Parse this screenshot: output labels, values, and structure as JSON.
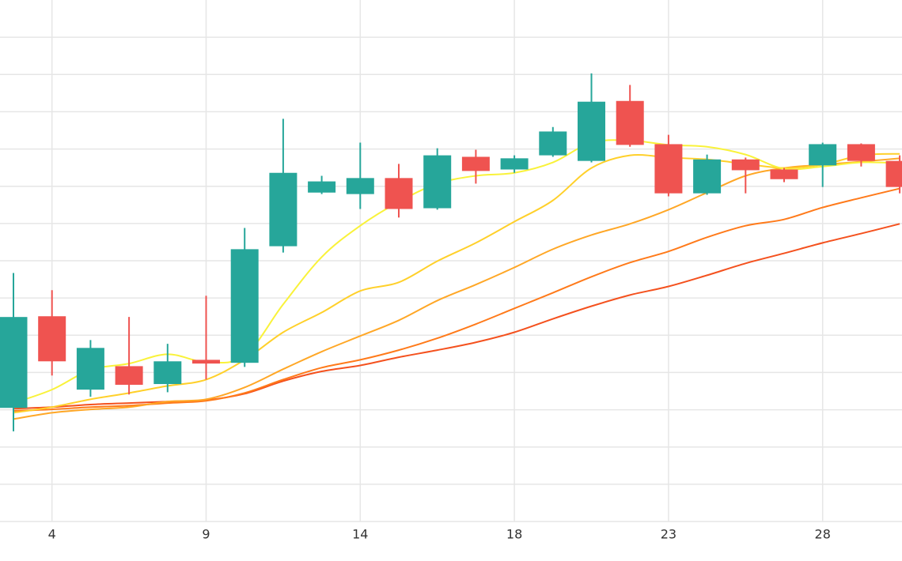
{
  "chart_data": {
    "type": "candlestick",
    "categories": [
      null,
      "4",
      null,
      null,
      null,
      "9",
      null,
      null,
      null,
      "14",
      null,
      null,
      null,
      "18",
      null,
      null,
      null,
      "23",
      null,
      null,
      null,
      "28",
      null,
      null
    ],
    "open": [
      3.05,
      5.51,
      3.54,
      4.17,
      3.69,
      4.34,
      4.26,
      7.39,
      8.83,
      8.79,
      9.22,
      8.41,
      9.79,
      9.45,
      9.83,
      9.68,
      11.29,
      10.13,
      8.81,
      9.72,
      9.45,
      9.56,
      10.13,
      9.68
    ],
    "high": [
      6.67,
      6.21,
      4.87,
      5.49,
      4.77,
      6.06,
      7.88,
      10.81,
      9.28,
      10.17,
      9.6,
      10.02,
      9.98,
      9.83,
      10.59,
      12.03,
      11.72,
      10.38,
      9.85,
      9.77,
      9.49,
      10.17,
      10.15,
      9.83
    ],
    "low": [
      2.42,
      3.92,
      3.35,
      3.41,
      3.47,
      3.81,
      4.15,
      7.22,
      8.79,
      8.39,
      8.16,
      8.37,
      9.07,
      9.36,
      9.79,
      9.64,
      10.06,
      8.73,
      8.77,
      8.81,
      9.11,
      8.98,
      9.53,
      8.81
    ],
    "close": [
      5.49,
      4.3,
      4.66,
      3.67,
      4.3,
      4.24,
      7.31,
      9.36,
      9.13,
      9.22,
      8.39,
      9.83,
      9.41,
      9.75,
      10.47,
      11.27,
      10.11,
      8.81,
      9.72,
      9.43,
      9.19,
      10.13,
      9.68,
      8.98
    ],
    "up_color": "#26a69a",
    "down_color": "#ef5350",
    "series": [
      {
        "color": "#f4511e",
        "values": [
          3.03,
          3.07,
          3.14,
          3.18,
          3.22,
          3.26,
          3.43,
          3.77,
          4.03,
          4.19,
          4.41,
          4.6,
          4.81,
          5.08,
          5.44,
          5.78,
          6.08,
          6.31,
          6.61,
          6.93,
          7.2,
          7.48,
          7.73,
          7.99
        ]
      },
      {
        "color": "#ff7a1a",
        "values": [
          2.97,
          3.01,
          3.07,
          3.11,
          3.18,
          3.24,
          3.45,
          3.81,
          4.13,
          4.34,
          4.6,
          4.92,
          5.3,
          5.72,
          6.14,
          6.57,
          6.95,
          7.25,
          7.63,
          7.94,
          8.11,
          8.43,
          8.69,
          8.94
        ]
      },
      {
        "color": "#ffa726",
        "values": [
          2.75,
          2.92,
          3.01,
          3.07,
          3.22,
          3.28,
          3.6,
          4.09,
          4.56,
          4.98,
          5.4,
          5.93,
          6.36,
          6.82,
          7.31,
          7.69,
          7.99,
          8.37,
          8.83,
          9.28,
          9.49,
          9.58,
          9.66,
          9.75
        ]
      },
      {
        "color": "#ffd02a",
        "values": [
          2.92,
          3.07,
          3.28,
          3.45,
          3.64,
          3.81,
          4.34,
          5.08,
          5.61,
          6.19,
          6.42,
          6.99,
          7.48,
          8.05,
          8.62,
          9.49,
          9.83,
          9.77,
          9.72,
          9.6,
          9.49,
          9.58,
          9.83,
          9.87
        ]
      },
      {
        "color": "#f9f23a",
        "values": [
          3.18,
          3.54,
          4.07,
          4.24,
          4.49,
          4.28,
          4.45,
          5.83,
          7.1,
          7.94,
          8.58,
          9.07,
          9.28,
          9.36,
          9.64,
          10.17,
          10.23,
          10.11,
          10.06,
          9.85,
          9.47,
          9.53,
          9.64,
          9.62
        ]
      }
    ],
    "ylim": [
      0,
      14
    ],
    "yticks": [
      0,
      1,
      2,
      3,
      4,
      5,
      6,
      7,
      8,
      9,
      10,
      11,
      12,
      13
    ],
    "grid": true
  }
}
